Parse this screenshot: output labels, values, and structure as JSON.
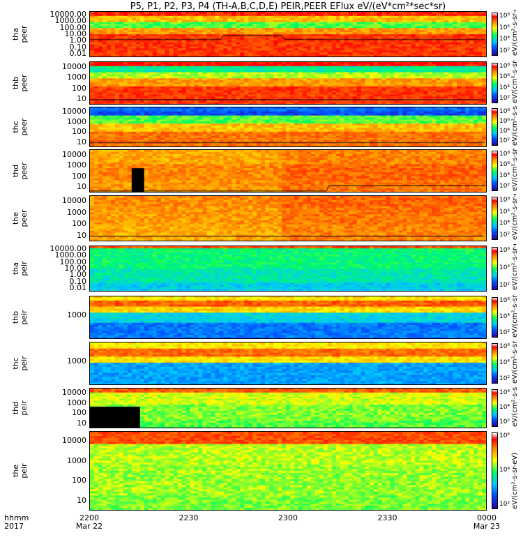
{
  "title": "P5, P1, P2, P3, P4 (TH-A,B,C,D,E) PEIR,PEER EFlux eV/(eV*cm²*sec*sr)",
  "x_axis": {
    "row_labels": [
      "hhmm",
      "2017"
    ],
    "ticks": [
      {
        "time": "2200",
        "date": "Mar 22"
      },
      {
        "time": "2230",
        "date": ""
      },
      {
        "time": "2300",
        "date": ""
      },
      {
        "time": "2330",
        "date": ""
      },
      {
        "time": "0000",
        "date": "Mar 23"
      }
    ]
  },
  "panels": [
    {
      "name": "tha peer",
      "label1": "tha",
      "label2": "peer",
      "yticks": [
        "10000.00",
        "1000.00",
        "100.00",
        "10.00",
        "1.00",
        "0.10",
        "0.01"
      ],
      "colorbar": [
        "10⁸",
        "10⁶",
        "10⁴",
        "10²"
      ],
      "units": "eV/(cm²-s-sr-eV)"
    },
    {
      "name": "thb peer",
      "label1": "thb",
      "label2": "peer",
      "yticks": [
        "10000",
        "1000",
        "100",
        "10"
      ],
      "colorbar": [
        "10⁸",
        "10⁶",
        "10⁴",
        "10²"
      ],
      "units": "eV/(cm²-s-sr-eV)"
    },
    {
      "name": "thc peer",
      "label1": "thc",
      "label2": "peer",
      "yticks": [
        "10000",
        "1000",
        "100",
        "10"
      ],
      "colorbar": [
        "10⁸",
        "10⁶",
        "10⁴",
        "10²"
      ],
      "units": "eV/(cm²-s-sr-eV)"
    },
    {
      "name": "thd peer",
      "label1": "thd",
      "label2": "peer",
      "yticks": [
        "10000",
        "1000",
        "100",
        "10"
      ],
      "colorbar": [
        "10⁸",
        "10⁶",
        "10⁴",
        "10²"
      ],
      "units": "eV/(cm²-s-sr-eV)"
    },
    {
      "name": "the peer",
      "label1": "the",
      "label2": "peer",
      "yticks": [
        "10000",
        "1000",
        "100",
        "10"
      ],
      "colorbar": [
        "10⁸",
        "10⁶",
        "10⁴",
        "10²"
      ],
      "units": "eV/(cm²-s-sr-eV)"
    },
    {
      "name": "tha peir",
      "label1": "tha",
      "label2": "peir",
      "yticks": [
        "10000.00",
        "1000.00",
        "100.00",
        "10.00",
        "1.00",
        "0.10",
        "0.01"
      ],
      "colorbar": [
        "10⁶",
        "10⁴",
        "10²"
      ],
      "units": "eV/(cm²-s-sr-eV)"
    },
    {
      "name": "thb peir",
      "label1": "thb",
      "label2": "peir",
      "yticks": [
        "1000"
      ],
      "colorbar": [
        "10⁶",
        "10⁴",
        "10²"
      ],
      "units": "eV/(cm²-s-sr-eV)"
    },
    {
      "name": "thc peir",
      "label1": "thc",
      "label2": "peir",
      "yticks": [
        "1000"
      ],
      "colorbar": [
        "10⁶",
        "10⁴",
        "10²"
      ],
      "units": "eV/(cm²-s-sr-eV)"
    },
    {
      "name": "thd peir",
      "label1": "thd",
      "label2": "peir",
      "yticks": [
        "10000",
        "1000",
        "100",
        "10"
      ],
      "colorbar": [
        "10⁶",
        "10⁴",
        "10²"
      ],
      "units": "eV/(cm²-s-sr-eV)"
    },
    {
      "name": "the peir",
      "label1": "the",
      "label2": "peir",
      "yticks": [
        "10000",
        "1000",
        "100",
        "10"
      ],
      "colorbar": [
        "10⁶",
        "10⁴",
        "10²"
      ],
      "units": "eV/(cm²-s-sr-eV)"
    }
  ],
  "colors": {
    "scale": [
      "#2a00a0",
      "#0050ff",
      "#00c8ff",
      "#00ff60",
      "#ffff00",
      "#ff8000",
      "#ff0000"
    ],
    "fill_gap": "#000000"
  },
  "chart_data": {
    "type": "heatmap",
    "title": "P5, P1, P2, P3, P4 (TH-A,B,C,D,E) PEIR,PEER EFlux eV/(eV*cm²*sec*sr)",
    "x_range": [
      "2017-03-22 22:00",
      "2017-03-23 00:00"
    ],
    "x_ticks": [
      "2200",
      "2230",
      "2300",
      "2330",
      "0000"
    ],
    "y_scale": "log",
    "z_scale": "log",
    "z_label": "eV/(cm²-s-sr-eV)"
  }
}
